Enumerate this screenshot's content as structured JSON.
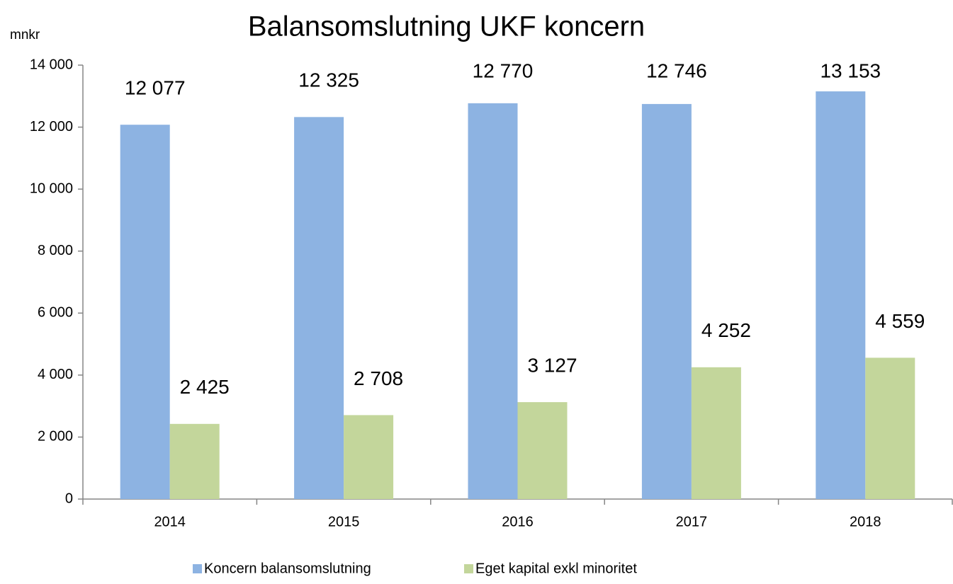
{
  "chart_data": {
    "type": "bar",
    "title": "Balansomslutning UKF koncern",
    "y_axis_label": "mnkr",
    "categories": [
      "2014",
      "2015",
      "2016",
      "2017",
      "2018"
    ],
    "series": [
      {
        "name": "Koncern balansomslutning",
        "color": "#8db3e2",
        "values": [
          12077,
          12325,
          12770,
          12746,
          13153
        ],
        "value_labels": [
          "12 077",
          "12 325",
          "12 770",
          "12 746",
          "13 153"
        ]
      },
      {
        "name": "Eget kapital exkl minoritet",
        "color": "#c3d69b",
        "values": [
          2425,
          2708,
          3127,
          4252,
          4559
        ],
        "value_labels": [
          "2 425",
          "2 708",
          "3 127",
          "4 252",
          "4 559"
        ]
      }
    ],
    "ylim": [
      0,
      14000
    ],
    "yticks": [
      {
        "value": 0,
        "label": "0"
      },
      {
        "value": 2000,
        "label": "2 000"
      },
      {
        "value": 4000,
        "label": "4 000"
      },
      {
        "value": 6000,
        "label": "6 000"
      },
      {
        "value": 8000,
        "label": "8 000"
      },
      {
        "value": 10000,
        "label": "10 000"
      },
      {
        "value": 12000,
        "label": "12 000"
      },
      {
        "value": 14000,
        "label": "14 000"
      }
    ],
    "grid": false,
    "legend": "bottom"
  }
}
